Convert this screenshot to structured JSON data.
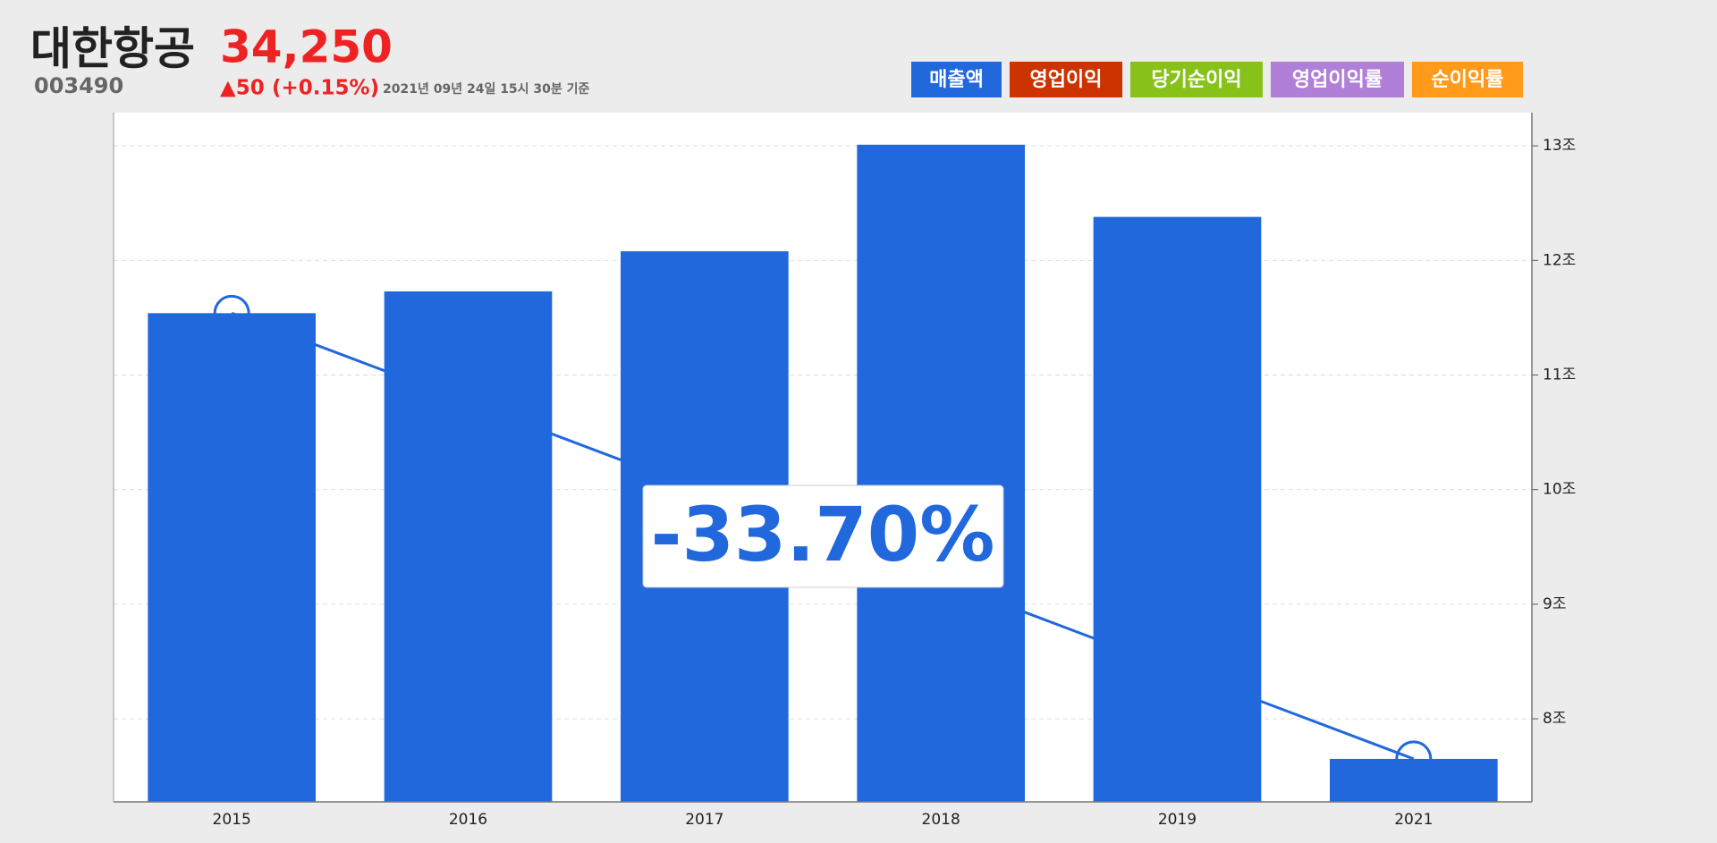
{
  "header": {
    "name": "대한항공",
    "code": "003490",
    "price": "34,250",
    "change": "▲50",
    "change_pct": "(+0.15%)",
    "timestamp": "2021년 09년 24일 15시 30분 기준"
  },
  "legend_buttons": [
    {
      "label": "매출액",
      "color": "#2068dc"
    },
    {
      "label": "영업이익",
      "color": "#cc3300"
    },
    {
      "label": "당기순이익",
      "color": "#88c11a"
    },
    {
      "label": "영업이익률",
      "color": "#b07fd8"
    },
    {
      "label": "순이익률",
      "color": "#ff9a1a"
    }
  ],
  "chart_data": {
    "type": "bar",
    "categories": [
      "2015",
      "2016",
      "2017",
      "2018",
      "2019",
      "2021"
    ],
    "values": [
      11.54,
      11.73,
      12.08,
      13.01,
      12.38,
      7.65
    ],
    "color": "#2068dc",
    "ylim": [
      7.275,
      13.29
    ],
    "yticks": [
      {
        "value": 8,
        "label": "8조"
      },
      {
        "value": 9,
        "label": "9조"
      },
      {
        "value": 10,
        "label": "10조"
      },
      {
        "value": 11,
        "label": "11조"
      },
      {
        "value": 12,
        "label": "12조"
      },
      {
        "value": 13,
        "label": "13조"
      }
    ],
    "grid": true,
    "annotation": "-33.70%"
  }
}
